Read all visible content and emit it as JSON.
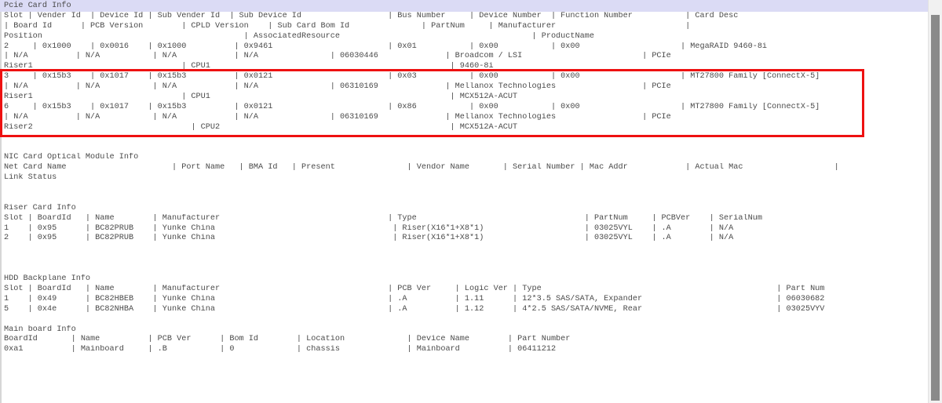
{
  "colors": {
    "background": "#ffffff",
    "text": "#4a4a4a",
    "selection_band": "#dbdbf5",
    "red_annotation_box": "#ee1111",
    "scrollbar_track": "#f1f1f1",
    "scrollbar_thumb": "#8a8a8a"
  },
  "sections": {
    "pcie_card_info": {
      "title": "Pcie Card Info",
      "columns": [
        "Slot",
        "Vender Id",
        "Device Id",
        "Sub Vender Id",
        "Sub Device Id",
        "Bus Number",
        "Device Number",
        "Function Number",
        "Card Desc",
        "Board Id",
        "PCB Version",
        "CPLD Version",
        "Sub Card Bom Id",
        "PartNum",
        "Manufacturer",
        "Position",
        "AssociatedResource",
        "ProductName"
      ],
      "rows": [
        {
          "slot": "2",
          "vender_id": "0x1000",
          "device_id": "0x0016",
          "sub_vender_id": "0x1000",
          "sub_device_id": "0x9461",
          "bus_number": "0x01",
          "device_number": "0x00",
          "function_number": "0x00",
          "card_desc": "MegaRAID 9460-8i",
          "board_id": "N/A",
          "pcb_version": "N/A",
          "cpld_version": "N/A",
          "sub_card_bom_id": "N/A",
          "part_num": "06030446",
          "manufacturer": "Broadcom / LSI",
          "type": "PCIe",
          "position": "Riser1",
          "associated_resource": "CPU1",
          "product_name": "9460-8i"
        },
        {
          "slot": "3",
          "vender_id": "0x15b3",
          "device_id": "0x1017",
          "sub_vender_id": "0x15b3",
          "sub_device_id": "0x0121",
          "bus_number": "0x03",
          "device_number": "0x00",
          "function_number": "0x00",
          "card_desc": "MT27800 Family [ConnectX-5]",
          "board_id": "N/A",
          "pcb_version": "N/A",
          "cpld_version": "N/A",
          "sub_card_bom_id": "N/A",
          "part_num": "06310169",
          "manufacturer": "Mellanox Technologies",
          "type": "PCIe",
          "position": "Riser1",
          "associated_resource": "CPU1",
          "product_name": "MCX512A-ACUT"
        },
        {
          "slot": "6",
          "vender_id": "0x15b3",
          "device_id": "0x1017",
          "sub_vender_id": "0x15b3",
          "sub_device_id": "0x0121",
          "bus_number": "0x86",
          "device_number": "0x00",
          "function_number": "0x00",
          "card_desc": "MT27800 Family [ConnectX-5]",
          "board_id": "N/A",
          "pcb_version": "N/A",
          "cpld_version": "N/A",
          "sub_card_bom_id": "N/A",
          "part_num": "06310169",
          "manufacturer": "Mellanox Technologies",
          "type": "PCIe",
          "position": "Riser2",
          "associated_resource": "CPU2",
          "product_name": "MCX512A-ACUT"
        }
      ]
    },
    "nic_card_optical_module_info": {
      "title": "NIC Card Optical Module Info",
      "columns": [
        "Net Card Name",
        "Port Name",
        "BMA Id",
        "Present",
        "Vendor Name",
        "Serial Number",
        "Mac Addr",
        "Actual Mac",
        "Link Status"
      ],
      "rows": []
    },
    "riser_card_info": {
      "title": "Riser Card Info",
      "columns": [
        "Slot",
        "BoardId",
        "Name",
        "Manufacturer",
        "Type",
        "PartNum",
        "PCBVer",
        "SerialNum"
      ],
      "rows": [
        [
          "1",
          "0x95",
          "BC82PRUB",
          "Yunke China",
          "Riser(X16*1+X8*1)",
          "03025VYL",
          ".A",
          "N/A"
        ],
        [
          "2",
          "0x95",
          "BC82PRUB",
          "Yunke China",
          "Riser(X16*1+X8*1)",
          "03025VYL",
          ".A",
          "N/A"
        ]
      ]
    },
    "hdd_backplane_info": {
      "title": "HDD Backplane Info",
      "columns": [
        "Slot",
        "BoardId",
        "Name",
        "Manufacturer",
        "PCB Ver",
        "Logic Ver",
        "Type",
        "Part Num"
      ],
      "rows": [
        [
          "1",
          "0x49",
          "BC82HBEB",
          "Yunke China",
          ".A",
          "1.11",
          "12*3.5 SAS/SATA, Expander",
          "06030682"
        ],
        [
          "5",
          "0x4e",
          "BC82NHBA",
          "Yunke China",
          ".A",
          "1.12",
          "4*2.5 SAS/SATA/NVME, Rear",
          "03025VYV"
        ]
      ]
    },
    "main_board_info": {
      "title": "Main board Info",
      "columns": [
        "BoardId",
        "Name",
        "PCB Ver",
        "Bom Id",
        "Location",
        "Device Name",
        "Part Number"
      ],
      "rows": [
        [
          "0xa1",
          "Mainboard",
          ".B",
          "0",
          "chassis",
          "Mainboard",
          "06411212"
        ]
      ]
    }
  },
  "terminal": {
    "render_lines": [
      "Pcie Card Info",
      "Slot | Vender Id  | Device Id | Sub Vender Id  | Sub Device Id                  | Bus Number     | Device Number  | Function Number           | Card Desc",
      "| Board Id      | PCB Version        | CPLD Version    | Sub Card Bom Id               | PartNum     | Manufacturer                           |",
      "Position                                          | AssociatedResource                                        | ProductName",
      "2     | 0x1000    | 0x0016    | 0x1000          | 0x9461                        | 0x01           | 0x00           | 0x00                     | MegaRAID 9460-8i",
      "| N/A          | N/A           | N/A            | N/A               | 06030446              | Broadcom / LSI                         | PCIe",
      "Riser1                               | CPU1                                                  | 9460-8i",
      "3     | 0x15b3    | 0x1017    | 0x15b3          | 0x0121                        | 0x03           | 0x00           | 0x00                     | MT27800 Family [ConnectX-5]",
      "| N/A          | N/A           | N/A            | N/A               | 06310169              | Mellanox Technologies                  | PCIe",
      "Riser1                               | CPU1                                                  | MCX512A-ACUT",
      "6     | 0x15b3    | 0x1017    | 0x15b3          | 0x0121                        | 0x86           | 0x00           | 0x00                     | MT27800 Family [ConnectX-5]",
      "| N/A          | N/A           | N/A            | N/A               | 06310169              | Mellanox Technologies                  | PCIe",
      "Riser2                                 | CPU2                                                | MCX512A-ACUT",
      "",
      "",
      "NIC Card Optical Module Info",
      "Net Card Name                      | Port Name   | BMA Id   | Present               | Vendor Name       | Serial Number | Mac Addr            | Actual Mac                   |",
      "Link Status",
      "",
      "",
      "Riser Card Info",
      "Slot | BoardId   | Name        | Manufacturer                                   | Type                                   | PartNum     | PCBVer    | SerialNum",
      "1    | 0x95      | BC82PRUB    | Yunke China                                     | Riser(X16*1+X8*1)                     | 03025VYL    | .A        | N/A",
      "2    | 0x95      | BC82PRUB    | Yunke China                                     | Riser(X16*1+X8*1)                     | 03025VYL    | .A        | N/A",
      "",
      "",
      "",
      "HDD Backplane Info",
      "Slot | BoardId   | Name        | Manufacturer                                   | PCB Ver     | Logic Ver | Type                                                 | Part Num",
      "1    | 0x49      | BC82HBEB    | Yunke China                                    | .A          | 1.11      | 12*3.5 SAS/SATA, Expander                            | 06030682",
      "5    | 0x4e      | BC82NHBA    | Yunke China                                    | .A          | 1.12      | 4*2.5 SAS/SATA/NVME, Rear                            | 03025VYV",
      "",
      "Main board Info",
      "BoardId       | Name          | PCB Ver      | Bom Id        | Location             | Device Name        | Part Number",
      "0xa1          | Mainboard     | .B           | 0             | chassis              | Mainboard          | 06411212"
    ]
  }
}
